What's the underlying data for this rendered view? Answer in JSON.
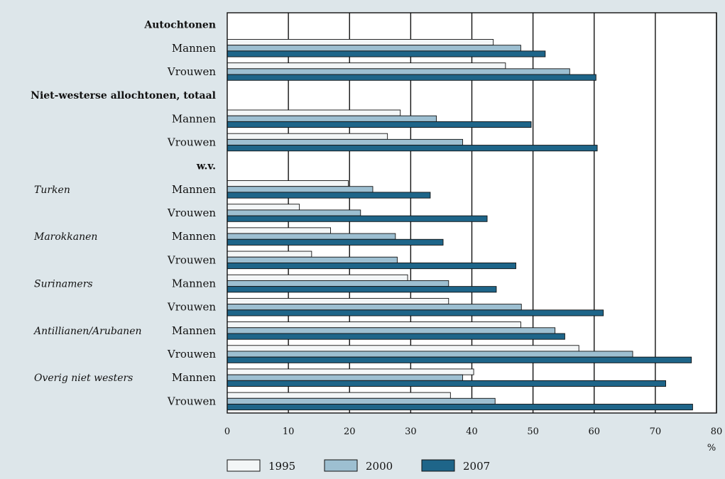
{
  "chart_data": {
    "type": "bar",
    "orientation": "horizontal",
    "unit": "%",
    "xlim": [
      0,
      80
    ],
    "xticks": [
      0,
      10,
      20,
      30,
      40,
      50,
      60,
      70,
      80
    ],
    "grid": true,
    "legend_placement": "bottom",
    "series": [
      {
        "name": "1995",
        "color": "#f3f6f7"
      },
      {
        "name": "2000",
        "color": "#9dbfd1"
      },
      {
        "name": "2007",
        "color": "#1e6589"
      }
    ],
    "rows": [
      {
        "kind": "header",
        "label": "Autochtonen"
      },
      {
        "kind": "bar",
        "label": "Mannen",
        "group": "",
        "values": [
          43.5,
          48,
          52
        ]
      },
      {
        "kind": "bar",
        "label": "Vrouwen",
        "group": "",
        "values": [
          45.5,
          56,
          60.3
        ]
      },
      {
        "kind": "header",
        "label": "Niet-westerse allochtonen, totaal"
      },
      {
        "kind": "bar",
        "label": "Mannen",
        "group": "",
        "values": [
          28.3,
          34.2,
          49.7
        ]
      },
      {
        "kind": "bar",
        "label": "Vrouwen",
        "group": "",
        "values": [
          26.2,
          38.5,
          60.5
        ]
      },
      {
        "kind": "header",
        "label": "w.v."
      },
      {
        "kind": "bar",
        "label": "Mannen",
        "group": "Turken",
        "values": [
          19.8,
          23.8,
          33.2
        ]
      },
      {
        "kind": "bar",
        "label": "Vrouwen",
        "group": "",
        "values": [
          11.8,
          21.8,
          42.5
        ]
      },
      {
        "kind": "bar",
        "label": "Mannen",
        "group": "Marokkanen",
        "values": [
          16.9,
          27.5,
          35.3
        ]
      },
      {
        "kind": "bar",
        "label": "Vrouwen",
        "group": "",
        "values": [
          13.8,
          27.8,
          47.2
        ]
      },
      {
        "kind": "bar",
        "label": "Mannen",
        "group": "Surinamers",
        "values": [
          29.5,
          36.2,
          44
        ]
      },
      {
        "kind": "bar",
        "label": "Vrouwen",
        "group": "",
        "values": [
          36.2,
          48.1,
          61.5
        ]
      },
      {
        "kind": "bar",
        "label": "Mannen",
        "group": "Antillianen/Arubanen",
        "values": [
          48,
          53.6,
          55.2
        ]
      },
      {
        "kind": "bar",
        "label": "Vrouwen",
        "group": "",
        "values": [
          57.5,
          66.3,
          75.9
        ]
      },
      {
        "kind": "bar",
        "label": "Mannen",
        "group": "Overig niet westers",
        "values": [
          40.3,
          38.5,
          71.7
        ]
      },
      {
        "kind": "bar",
        "label": "Vrouwen",
        "group": "",
        "values": [
          36.5,
          43.8,
          76.1
        ]
      }
    ]
  }
}
